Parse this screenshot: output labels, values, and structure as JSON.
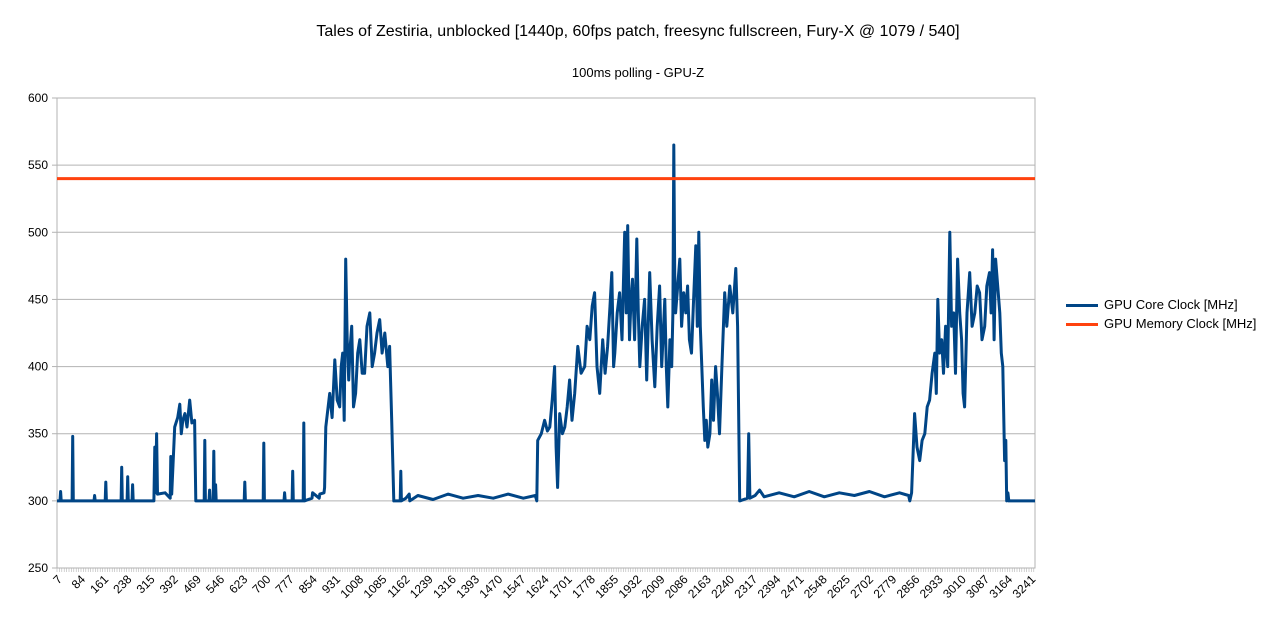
{
  "chart_data": {
    "type": "line",
    "title": "Tales of Zestiria, unblocked [1440p, 60fps patch, freesync fullscreen, Fury-X @ 1079 / 540]",
    "subtitle": "100ms polling - GPU-Z",
    "xlabel": "",
    "ylabel": "",
    "ylim": [
      250,
      600
    ],
    "yticks": [
      250,
      300,
      350,
      400,
      450,
      500,
      550,
      600
    ],
    "xlim": [
      1,
      3250
    ],
    "xticks": [
      7,
      84,
      161,
      238,
      315,
      392,
      469,
      546,
      623,
      700,
      777,
      854,
      931,
      1008,
      1085,
      1162,
      1239,
      1316,
      1393,
      1470,
      1547,
      1624,
      1701,
      1778,
      1855,
      1932,
      2009,
      2086,
      2163,
      2240,
      2317,
      2394,
      2471,
      2548,
      2625,
      2702,
      2779,
      2856,
      2933,
      3010,
      3087,
      3164,
      3241
    ],
    "grid": true,
    "legend_position": "right",
    "series": [
      {
        "name": "GPU Core Clock [MHz]",
        "color": "#004586",
        "points": [
          [
            1,
            300
          ],
          [
            11,
            300
          ],
          [
            13,
            307
          ],
          [
            15,
            300
          ],
          [
            51,
            300
          ],
          [
            53,
            348
          ],
          [
            55,
            300
          ],
          [
            124,
            300
          ],
          [
            126,
            304
          ],
          [
            128,
            300
          ],
          [
            161,
            300
          ],
          [
            163,
            314
          ],
          [
            165,
            300
          ],
          [
            214,
            300
          ],
          [
            216,
            325
          ],
          [
            218,
            300
          ],
          [
            234,
            300
          ],
          [
            236,
            318
          ],
          [
            238,
            300
          ],
          [
            250,
            300
          ],
          [
            252,
            312
          ],
          [
            254,
            300
          ],
          [
            323,
            300
          ],
          [
            326,
            340
          ],
          [
            329,
            306
          ],
          [
            332,
            350
          ],
          [
            335,
            305
          ],
          [
            360,
            306
          ],
          [
            377,
            302
          ],
          [
            379,
            333
          ],
          [
            382,
            305
          ],
          [
            392,
            355
          ],
          [
            402,
            362
          ],
          [
            409,
            372
          ],
          [
            414,
            350
          ],
          [
            419,
            360
          ],
          [
            426,
            365
          ],
          [
            433,
            355
          ],
          [
            442,
            375
          ],
          [
            449,
            358
          ],
          [
            458,
            360
          ],
          [
            462,
            300
          ],
          [
            490,
            300
          ],
          [
            492,
            345
          ],
          [
            494,
            300
          ],
          [
            506,
            300
          ],
          [
            508,
            308
          ],
          [
            510,
            300
          ],
          [
            520,
            300
          ],
          [
            522,
            337
          ],
          [
            524,
            300
          ],
          [
            526,
            300
          ],
          [
            528,
            312
          ],
          [
            530,
            300
          ],
          [
            623,
            300
          ],
          [
            625,
            314
          ],
          [
            627,
            300
          ],
          [
            686,
            300
          ],
          [
            688,
            343
          ],
          [
            690,
            300
          ],
          [
            755,
            300
          ],
          [
            757,
            306
          ],
          [
            759,
            300
          ],
          [
            782,
            300
          ],
          [
            784,
            322
          ],
          [
            786,
            300
          ],
          [
            819,
            300
          ],
          [
            821,
            358
          ],
          [
            823,
            300
          ],
          [
            848,
            302
          ],
          [
            850,
            306
          ],
          [
            872,
            302
          ],
          [
            874,
            305
          ],
          [
            888,
            306
          ],
          [
            890,
            310
          ],
          [
            894,
            355
          ],
          [
            907,
            380
          ],
          [
            915,
            362
          ],
          [
            924,
            405
          ],
          [
            932,
            375
          ],
          [
            940,
            370
          ],
          [
            945,
            400
          ],
          [
            950,
            410
          ],
          [
            955,
            360
          ],
          [
            960,
            480
          ],
          [
            965,
            420
          ],
          [
            970,
            390
          ],
          [
            975,
            415
          ],
          [
            980,
            430
          ],
          [
            986,
            370
          ],
          [
            993,
            380
          ],
          [
            1000,
            410
          ],
          [
            1007,
            420
          ],
          [
            1015,
            395
          ],
          [
            1023,
            395
          ],
          [
            1031,
            430
          ],
          [
            1040,
            440
          ],
          [
            1048,
            400
          ],
          [
            1056,
            410
          ],
          [
            1064,
            425
          ],
          [
            1073,
            435
          ],
          [
            1081,
            410
          ],
          [
            1090,
            425
          ],
          [
            1100,
            400
          ],
          [
            1106,
            415
          ],
          [
            1113,
            360
          ],
          [
            1120,
            300
          ],
          [
            1141,
            300
          ],
          [
            1143,
            322
          ],
          [
            1145,
            300
          ],
          [
            1160,
            302
          ],
          [
            1171,
            305
          ],
          [
            1173,
            300
          ],
          [
            1200,
            304
          ],
          [
            1250,
            301
          ],
          [
            1300,
            305
          ],
          [
            1350,
            302
          ],
          [
            1400,
            304
          ],
          [
            1450,
            302
          ],
          [
            1500,
            305
          ],
          [
            1550,
            302
          ],
          [
            1590,
            304
          ],
          [
            1595,
            300
          ],
          [
            1598,
            345
          ],
          [
            1610,
            350
          ],
          [
            1621,
            360
          ],
          [
            1630,
            352
          ],
          [
            1638,
            355
          ],
          [
            1646,
            375
          ],
          [
            1654,
            400
          ],
          [
            1659,
            340
          ],
          [
            1664,
            310
          ],
          [
            1671,
            365
          ],
          [
            1680,
            350
          ],
          [
            1688,
            355
          ],
          [
            1696,
            370
          ],
          [
            1704,
            390
          ],
          [
            1712,
            360
          ],
          [
            1721,
            380
          ],
          [
            1731,
            415
          ],
          [
            1742,
            395
          ],
          [
            1754,
            400
          ],
          [
            1762,
            430
          ],
          [
            1771,
            420
          ],
          [
            1779,
            445
          ],
          [
            1787,
            455
          ],
          [
            1795,
            400
          ],
          [
            1804,
            380
          ],
          [
            1814,
            420
          ],
          [
            1822,
            395
          ],
          [
            1830,
            415
          ],
          [
            1838,
            445
          ],
          [
            1844,
            470
          ],
          [
            1850,
            400
          ],
          [
            1854,
            410
          ],
          [
            1862,
            440
          ],
          [
            1870,
            455
          ],
          [
            1878,
            420
          ],
          [
            1887,
            500
          ],
          [
            1892,
            440
          ],
          [
            1897,
            505
          ],
          [
            1903,
            420
          ],
          [
            1908,
            450
          ],
          [
            1913,
            465
          ],
          [
            1920,
            420
          ],
          [
            1927,
            495
          ],
          [
            1932,
            440
          ],
          [
            1937,
            400
          ],
          [
            1945,
            430
          ],
          [
            1953,
            450
          ],
          [
            1960,
            390
          ],
          [
            1970,
            470
          ],
          [
            1978,
            420
          ],
          [
            1987,
            385
          ],
          [
            1995,
            430
          ],
          [
            2003,
            460
          ],
          [
            2010,
            400
          ],
          [
            2020,
            450
          ],
          [
            2025,
            400
          ],
          [
            2030,
            370
          ],
          [
            2037,
            420
          ],
          [
            2043,
            400
          ],
          [
            2047,
            440
          ],
          [
            2050,
            565
          ],
          [
            2053,
            470
          ],
          [
            2056,
            440
          ],
          [
            2063,
            460
          ],
          [
            2070,
            480
          ],
          [
            2076,
            430
          ],
          [
            2083,
            455
          ],
          [
            2090,
            440
          ],
          [
            2096,
            460
          ],
          [
            2102,
            420
          ],
          [
            2109,
            410
          ],
          [
            2116,
            450
          ],
          [
            2123,
            490
          ],
          [
            2128,
            430
          ],
          [
            2133,
            500
          ],
          [
            2138,
            430
          ],
          [
            2143,
            400
          ],
          [
            2148,
            370
          ],
          [
            2153,
            345
          ],
          [
            2158,
            360
          ],
          [
            2163,
            340
          ],
          [
            2170,
            350
          ],
          [
            2176,
            390
          ],
          [
            2182,
            360
          ],
          [
            2189,
            400
          ],
          [
            2195,
            380
          ],
          [
            2202,
            350
          ],
          [
            2210,
            400
          ],
          [
            2219,
            455
          ],
          [
            2226,
            430
          ],
          [
            2236,
            460
          ],
          [
            2246,
            440
          ],
          [
            2256,
            473
          ],
          [
            2262,
            430
          ],
          [
            2269,
            300
          ],
          [
            2295,
            302
          ],
          [
            2299,
            350
          ],
          [
            2303,
            302
          ],
          [
            2320,
            304
          ],
          [
            2335,
            308
          ],
          [
            2350,
            303
          ],
          [
            2400,
            306
          ],
          [
            2450,
            303
          ],
          [
            2500,
            307
          ],
          [
            2550,
            303
          ],
          [
            2600,
            306
          ],
          [
            2650,
            304
          ],
          [
            2700,
            307
          ],
          [
            2750,
            303
          ],
          [
            2800,
            306
          ],
          [
            2830,
            304
          ],
          [
            2834,
            300
          ],
          [
            2840,
            306
          ],
          [
            2850,
            365
          ],
          [
            2858,
            340
          ],
          [
            2867,
            330
          ],
          [
            2875,
            345
          ],
          [
            2884,
            350
          ],
          [
            2892,
            370
          ],
          [
            2900,
            375
          ],
          [
            2908,
            395
          ],
          [
            2917,
            410
          ],
          [
            2922,
            380
          ],
          [
            2927,
            450
          ],
          [
            2933,
            410
          ],
          [
            2940,
            420
          ],
          [
            2946,
            395
          ],
          [
            2953,
            430
          ],
          [
            2960,
            400
          ],
          [
            2967,
            500
          ],
          [
            2973,
            430
          ],
          [
            2980,
            440
          ],
          [
            2986,
            395
          ],
          [
            2993,
            480
          ],
          [
            3000,
            440
          ],
          [
            3006,
            420
          ],
          [
            3011,
            380
          ],
          [
            3016,
            370
          ],
          [
            3024,
            440
          ],
          [
            3033,
            470
          ],
          [
            3041,
            430
          ],
          [
            3050,
            440
          ],
          [
            3058,
            460
          ],
          [
            3066,
            455
          ],
          [
            3074,
            420
          ],
          [
            3083,
            430
          ],
          [
            3090,
            460
          ],
          [
            3099,
            470
          ],
          [
            3104,
            440
          ],
          [
            3109,
            487
          ],
          [
            3114,
            420
          ],
          [
            3119,
            480
          ],
          [
            3126,
            460
          ],
          [
            3133,
            440
          ],
          [
            3138,
            410
          ],
          [
            3143,
            400
          ],
          [
            3149,
            330
          ],
          [
            3153,
            345
          ],
          [
            3156,
            300
          ],
          [
            3160,
            306
          ],
          [
            3163,
            300
          ],
          [
            3250,
            300
          ]
        ]
      },
      {
        "name": "GPU Memory Clock [MHz]",
        "color": "#ff420e",
        "points": [
          [
            1,
            540
          ],
          [
            3250,
            540
          ]
        ]
      }
    ]
  }
}
